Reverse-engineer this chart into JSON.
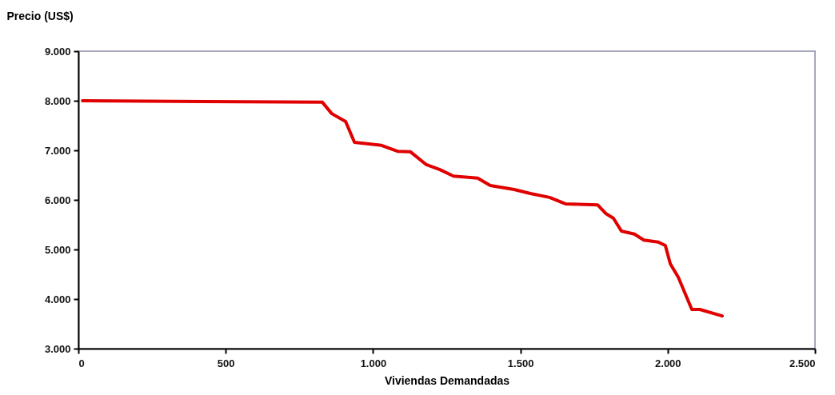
{
  "chart_data": {
    "type": "line",
    "ylabel": "Precio (US$)",
    "xlabel": "Viviendas Demandadas",
    "x": [
      14,
      828,
      860,
      907,
      937,
      1029,
      1083,
      1127,
      1181,
      1227,
      1273,
      1355,
      1398,
      1479,
      1534,
      1599,
      1653,
      1762,
      1789,
      1816,
      1843,
      1887,
      1919,
      1968,
      1992,
      2009,
      2036,
      2082,
      2109,
      2185
    ],
    "series": [
      {
        "color": "#e00000",
        "values": [
          8000,
          7970,
          7740,
          7580,
          7160,
          7100,
          6980,
          6970,
          6710,
          6610,
          6480,
          6440,
          6290,
          6210,
          6130,
          6050,
          5920,
          5900,
          5730,
          5630,
          5370,
          5310,
          5190,
          5150,
          5080,
          4710,
          4440,
          3790,
          3790,
          3660
        ]
      }
    ],
    "xlim": [
      0,
      2500
    ],
    "xticks": [
      0,
      500,
      {
        "value": 1000,
        "label": "1.000"
      },
      {
        "value": 1500,
        "label": "1.500"
      },
      {
        "value": 2000,
        "label": "2.000"
      },
      {
        "value": 2500,
        "label": "2.500"
      }
    ],
    "ylim": [
      3000,
      9000
    ],
    "yticks": [
      {
        "value": 3000,
        "label": "3.000"
      },
      {
        "value": 4000,
        "label": "4.000"
      },
      {
        "value": 5000,
        "label": "5.000"
      },
      {
        "value": 6000,
        "label": "6.000"
      },
      {
        "value": 7000,
        "label": "7.000"
      },
      {
        "value": 8000,
        "label": "8.000"
      },
      {
        "value": 9000,
        "label": "9.000"
      }
    ],
    "grid": false,
    "marker": "none",
    "line_style": "solid"
  }
}
